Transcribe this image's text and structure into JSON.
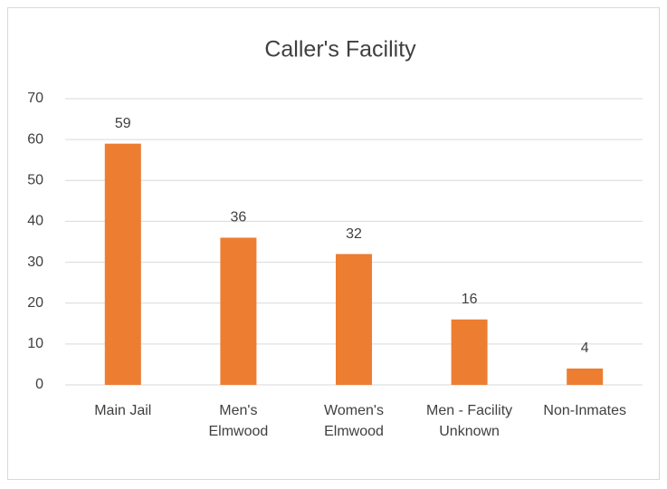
{
  "chart_data": {
    "type": "bar",
    "title": "Caller's Facility",
    "categories": [
      "Main Jail",
      "Men's Elmwood",
      "Women's Elmwood",
      "Men - Facility Unknown",
      "Non-Inmates"
    ],
    "values": [
      59,
      36,
      32,
      16,
      4
    ],
    "color": "#ed7d31",
    "ylim": [
      0,
      70
    ],
    "yticks": [
      0,
      10,
      20,
      30,
      40,
      50,
      60,
      70
    ],
    "grid": true
  }
}
